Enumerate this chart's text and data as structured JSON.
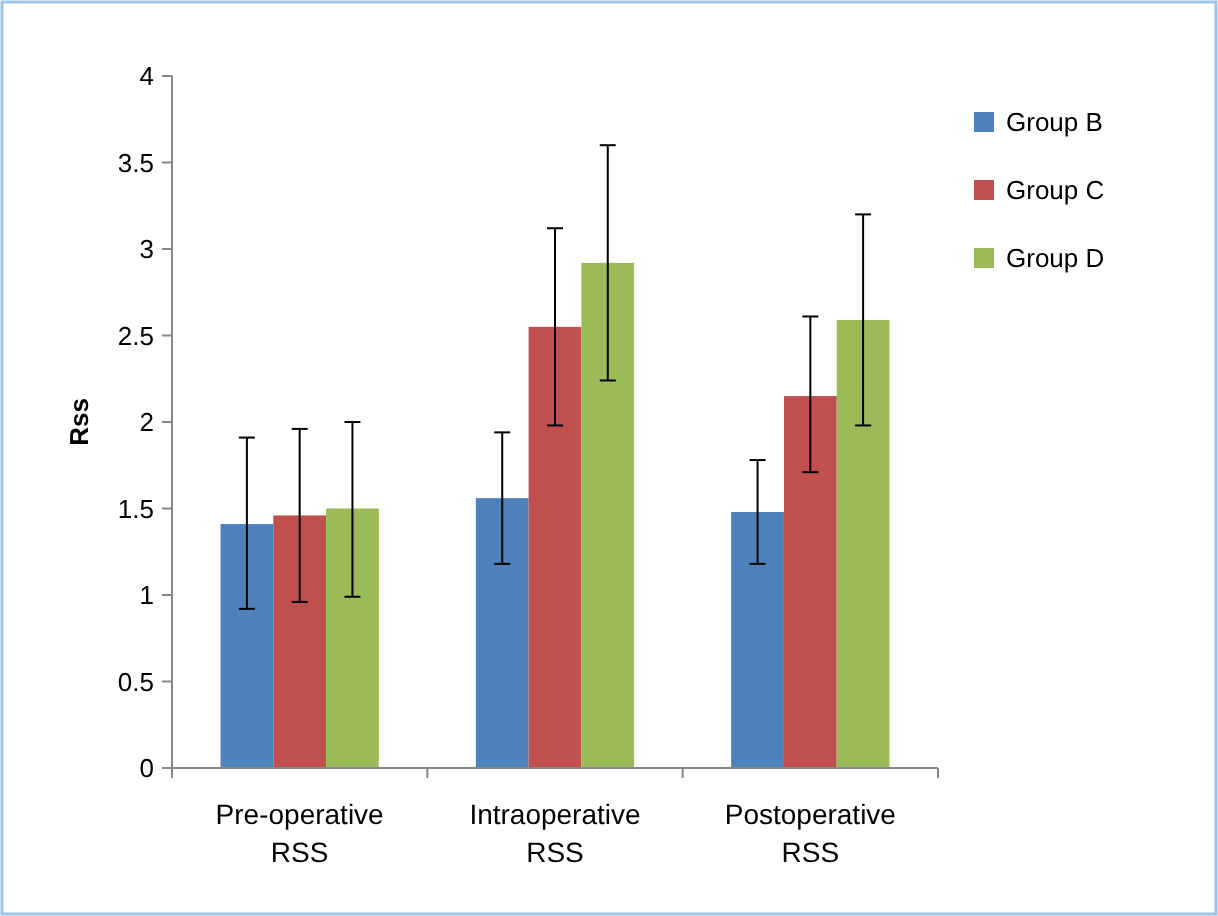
{
  "chart_data": {
    "type": "bar",
    "ylabel": "Rss",
    "categories": [
      "Pre-operative RSS",
      "Intraoperative RSS",
      "Postoperative RSS"
    ],
    "series": [
      {
        "name": "Group B",
        "color": "#4f81bd",
        "values": [
          1.41,
          1.56,
          1.48
        ],
        "errors": [
          [
            0.92,
            1.91
          ],
          [
            1.18,
            1.94
          ],
          [
            1.18,
            1.78
          ]
        ]
      },
      {
        "name": "Group C",
        "color": "#c0504d",
        "values": [
          1.46,
          2.55,
          2.15
        ],
        "errors": [
          [
            0.96,
            1.96
          ],
          [
            1.98,
            3.12
          ],
          [
            1.71,
            2.61
          ]
        ]
      },
      {
        "name": "Group D",
        "color": "#9bbb59",
        "values": [
          1.5,
          2.92,
          2.59
        ],
        "errors": [
          [
            0.99,
            2.0
          ],
          [
            2.24,
            3.6
          ],
          [
            1.98,
            3.2
          ]
        ]
      }
    ],
    "ylim": [
      0,
      4
    ],
    "yticks": [
      0,
      0.5,
      1,
      1.5,
      2,
      2.5,
      3,
      3.5,
      4
    ],
    "grid": false,
    "legend": "right"
  }
}
